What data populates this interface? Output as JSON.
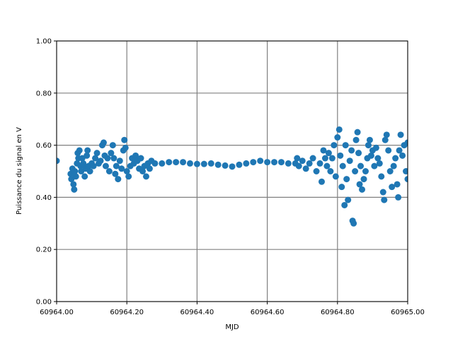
{
  "chart_data": {
    "type": "scatter",
    "xlabel": "MJD",
    "ylabel": "Puissance du signal en V",
    "color": "#1f77b4",
    "grid": true,
    "xlim": [
      60964.0,
      60965.0
    ],
    "xticks": [
      {
        "value": 60964.0,
        "label": "60964.00"
      },
      {
        "value": 60964.2,
        "label": "60964.20"
      },
      {
        "value": 60964.4,
        "label": "60964.40"
      },
      {
        "value": 60964.6,
        "label": "60964.60"
      },
      {
        "value": 60964.8,
        "label": "60964.80"
      },
      {
        "value": 60965.0,
        "label": "60965.00"
      }
    ],
    "ylim": [
      0,
      1
    ],
    "yticks": [
      {
        "value": 0,
        "label": "0.00"
      },
      {
        "value": 0.2,
        "label": "0.20"
      },
      {
        "value": 0.4,
        "label": "0.40"
      },
      {
        "value": 0.6,
        "label": "0.60"
      },
      {
        "value": 0.8,
        "label": "0.80"
      },
      {
        "value": 1,
        "label": "1.00"
      }
    ],
    "x": [
      60964.0,
      60964.04,
      60964.042,
      60964.045,
      60964.048,
      60964.05,
      60964.052,
      60964.055,
      60964.058,
      60964.06,
      60964.062,
      60964.065,
      60964.068,
      60964.07,
      60964.073,
      60964.076,
      60964.08,
      60964.083,
      60964.086,
      60964.088,
      60964.091,
      60964.095,
      60964.1,
      60964.105,
      60964.11,
      60964.115,
      60964.12,
      60964.125,
      60964.13,
      60964.134,
      60964.137,
      60964.14,
      60964.145,
      60964.15,
      60964.155,
      60964.16,
      60964.163,
      60964.167,
      60964.17,
      60964.175,
      60964.18,
      60964.185,
      60964.19,
      60964.193,
      60964.196,
      60964.2,
      60964.205,
      60964.21,
      60964.215,
      60964.22,
      60964.225,
      60964.23,
      60964.235,
      60964.24,
      60964.245,
      60964.25,
      60964.255,
      60964.26,
      60964.265,
      60964.27,
      60964.28,
      60964.3,
      60964.32,
      60964.34,
      60964.36,
      60964.38,
      60964.4,
      60964.42,
      60964.44,
      60964.46,
      60964.48,
      60964.5,
      60964.52,
      60964.54,
      60964.56,
      60964.58,
      60964.6,
      60964.62,
      60964.64,
      60964.66,
      60964.68,
      60964.685,
      60964.69,
      60964.7,
      60964.71,
      60964.72,
      60964.73,
      60964.74,
      60964.75,
      60964.755,
      60964.76,
      60964.765,
      60964.77,
      60964.775,
      60964.78,
      60964.785,
      60964.79,
      60964.795,
      60964.8,
      60964.805,
      60964.808,
      60964.812,
      60964.815,
      60964.82,
      60964.823,
      60964.826,
      60964.83,
      60964.835,
      60964.84,
      60964.843,
      60964.846,
      60964.85,
      60964.853,
      60964.857,
      60964.86,
      60964.863,
      60964.866,
      60964.87,
      60964.875,
      60964.88,
      60964.885,
      60964.888,
      60964.892,
      60964.896,
      60964.9,
      60964.905,
      60964.91,
      60964.915,
      60964.92,
      60964.925,
      60964.93,
      60964.933,
      60964.936,
      60964.94,
      60964.945,
      60964.95,
      60964.955,
      60964.96,
      60964.965,
      60964.97,
      60964.973,
      60964.976,
      60964.98,
      60964.985,
      60964.99,
      60964.995,
      60965.0,
      60965.0
    ],
    "values": [
      0.54,
      0.49,
      0.47,
      0.51,
      0.45,
      0.43,
      0.5,
      0.48,
      0.53,
      0.57,
      0.55,
      0.58,
      0.52,
      0.5,
      0.55,
      0.53,
      0.48,
      0.51,
      0.56,
      0.58,
      0.52,
      0.5,
      0.53,
      0.52,
      0.55,
      0.57,
      0.53,
      0.54,
      0.6,
      0.61,
      0.56,
      0.52,
      0.55,
      0.5,
      0.57,
      0.6,
      0.55,
      0.49,
      0.52,
      0.47,
      0.54,
      0.51,
      0.58,
      0.62,
      0.59,
      0.5,
      0.48,
      0.52,
      0.55,
      0.53,
      0.56,
      0.54,
      0.51,
      0.55,
      0.5,
      0.52,
      0.48,
      0.53,
      0.51,
      0.54,
      0.53,
      0.53,
      0.535,
      0.535,
      0.535,
      0.53,
      0.528,
      0.528,
      0.53,
      0.525,
      0.522,
      0.518,
      0.525,
      0.53,
      0.535,
      0.54,
      0.535,
      0.535,
      0.535,
      0.53,
      0.53,
      0.55,
      0.52,
      0.54,
      0.51,
      0.53,
      0.55,
      0.5,
      0.53,
      0.46,
      0.58,
      0.55,
      0.52,
      0.57,
      0.5,
      0.55,
      0.6,
      0.48,
      0.63,
      0.66,
      0.56,
      0.44,
      0.52,
      0.37,
      0.6,
      0.47,
      0.39,
      0.54,
      0.58,
      0.31,
      0.3,
      0.5,
      0.62,
      0.65,
      0.57,
      0.45,
      0.52,
      0.43,
      0.47,
      0.5,
      0.55,
      0.6,
      0.62,
      0.56,
      0.58,
      0.52,
      0.59,
      0.55,
      0.53,
      0.48,
      0.42,
      0.39,
      0.62,
      0.64,
      0.58,
      0.5,
      0.44,
      0.52,
      0.55,
      0.45,
      0.4,
      0.58,
      0.64,
      0.56,
      0.6,
      0.5,
      0.47,
      0.61
    ]
  }
}
